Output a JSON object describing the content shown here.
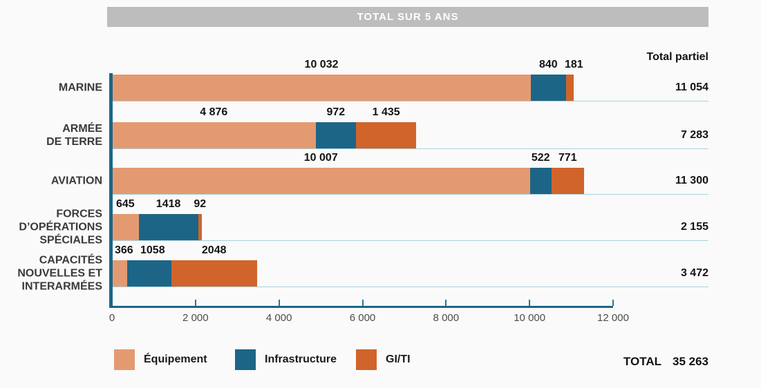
{
  "header": {
    "title": "TOTAL SUR 5 ANS"
  },
  "totals_column": {
    "header": "Total partiel"
  },
  "grand_total": {
    "label": "TOTAL",
    "value": "35 263"
  },
  "legend": [
    {
      "name": "Équipement",
      "color": "#E49A71"
    },
    {
      "name": "Infrastructure",
      "color": "#1D6586"
    },
    {
      "name": "GI/TI",
      "color": "#D0642B"
    }
  ],
  "colors": {
    "equipment": "#E49A71",
    "infrastructure": "#1D6586",
    "giti": "#D0642B",
    "axis": "#1D6586",
    "tick": "#27789B",
    "separator": "#A9D2DD",
    "header_band": "#BDBDBD",
    "background": "#FAFAFA"
  },
  "chart_data": {
    "type": "bar",
    "orientation": "horizontal",
    "stacked": true,
    "title": "TOTAL SUR 5 ANS",
    "categories": [
      {
        "lines": [
          "MARINE"
        ]
      },
      {
        "lines": [
          "ARMÉE",
          "DE TERRE"
        ]
      },
      {
        "lines": [
          "AVIATION"
        ]
      },
      {
        "lines": [
          "FORCES",
          "D’OPÉRATIONS",
          "SPÉCIALES"
        ]
      },
      {
        "lines": [
          "CAPACITÉS",
          "NOUVELLES ET",
          "INTERARMÉES"
        ]
      }
    ],
    "series": [
      {
        "name": "Équipement",
        "color": "#E49A71",
        "values": [
          10032,
          4876,
          10007,
          645,
          366
        ],
        "value_labels": [
          "10 032",
          "4 876",
          "10 007",
          "645",
          "366"
        ]
      },
      {
        "name": "Infrastructure",
        "color": "#1D6586",
        "values": [
          840,
          972,
          522,
          1418,
          1058
        ],
        "value_labels": [
          "840",
          "972",
          "522",
          "1418",
          "1058"
        ]
      },
      {
        "name": "GI/TI",
        "color": "#D0642B",
        "values": [
          181,
          1435,
          771,
          92,
          2048
        ],
        "value_labels": [
          "181",
          "1 435",
          "771",
          "92",
          "2048"
        ]
      }
    ],
    "row_totals": [
      "11 054",
      "7 283",
      "11 300",
      "2 155",
      "3 472"
    ],
    "row_total_values": [
      11054,
      7283,
      11300,
      2155,
      3472
    ],
    "x_axis": {
      "max": 12000,
      "ticks": [
        0,
        2000,
        4000,
        6000,
        8000,
        10000,
        12000
      ],
      "tick_labels": [
        "0",
        "2 000",
        "4 000",
        "6 000",
        "8 000",
        "10 000",
        "12 000"
      ]
    },
    "legend_position": "bottom",
    "grid": false
  }
}
